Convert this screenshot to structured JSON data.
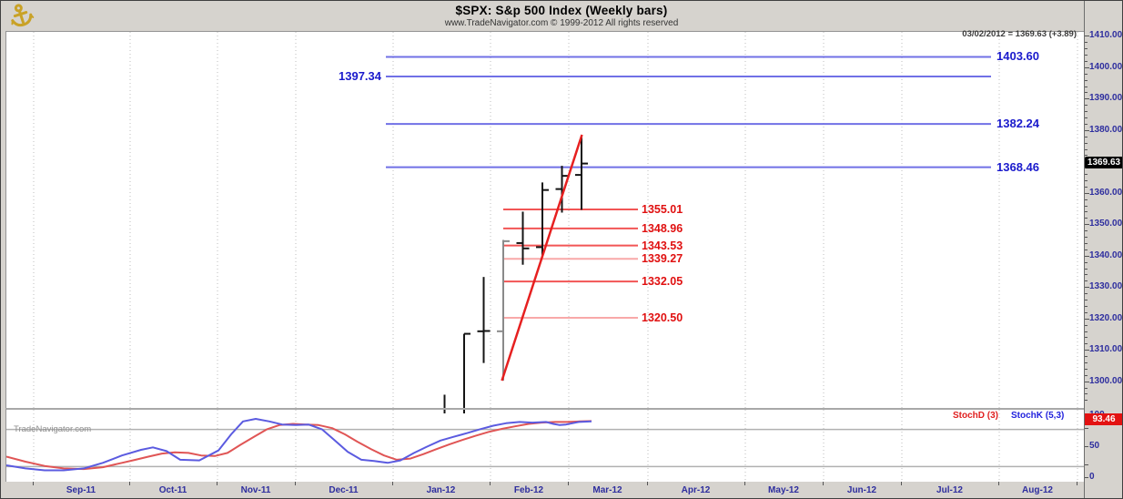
{
  "window": {
    "title": "$SPX:  S&p 500 Index  (Weekly bars)",
    "subtitle": "www.TradeNavigator.com © 1999-2012 All rights reserved",
    "quote_line": "03/02/2012 = 1369.63 (+3.89)",
    "watermark": "TradeNavigator.com",
    "logo": "anchor-icon"
  },
  "colors": {
    "frame_bg": "#d6d3ce",
    "panel_bg": "#ffffff",
    "grid": "#bdbdbd",
    "axis_text": "#2d2d9e",
    "bar": "#141414",
    "bar_gray": "#8a8a8a",
    "blue_line": "#7070e6",
    "blue_label": "#1a1acc",
    "red_line_strong": "#f25555",
    "red_line_light": "#f8a8a8",
    "red_label": "#e01010",
    "trendline": "#e62020",
    "stoch_k": "#5b5be0",
    "stoch_d": "#e05555",
    "last_box_bg": "#000000",
    "stoch_box_bg": "#e31212"
  },
  "chart_data": [
    {
      "type": "ohlc-bar",
      "symbol": "$SPX",
      "period": "Weekly bars",
      "y_axis": {
        "min": 1291.8,
        "max": 1412.0,
        "ticks": [
          1410,
          1400,
          1390,
          1380,
          1370,
          1360,
          1350,
          1340,
          1330,
          1320,
          1310,
          1300
        ],
        "last_price": 1369.63,
        "last_price_label": "1369.63"
      },
      "x_labels": [
        "Sep-11",
        "Oct-11",
        "Nov-11",
        "Dec-11",
        "Jan-12",
        "Feb-12",
        "Mar-12",
        "Apr-12",
        "May-12",
        "Jun-12",
        "Jul-12",
        "Aug-12"
      ],
      "bars": [
        {
          "week": "2012-01-13",
          "o": 1277.5,
          "h": 1296.0,
          "l": 1277.0,
          "c": 1289.1,
          "variant": "normal"
        },
        {
          "week": "2012-01-20",
          "o": 1290.2,
          "h": 1315.4,
          "l": 1290.0,
          "c": 1315.4,
          "variant": "normal"
        },
        {
          "week": "2012-01-27",
          "o": 1316.2,
          "h": 1333.5,
          "l": 1306.1,
          "c": 1316.3,
          "variant": "normal"
        },
        {
          "week": "2012-02-03",
          "o": 1316.2,
          "h": 1345.3,
          "l": 1300.5,
          "c": 1344.9,
          "variant": "gray"
        },
        {
          "week": "2012-02-10",
          "o": 1344.3,
          "h": 1354.3,
          "l": 1337.4,
          "c": 1342.6,
          "variant": "normal"
        },
        {
          "week": "2012-02-17",
          "o": 1343.0,
          "h": 1363.6,
          "l": 1340.1,
          "c": 1361.2,
          "variant": "normal"
        },
        {
          "week": "2012-02-24",
          "o": 1361.5,
          "h": 1368.9,
          "l": 1354.0,
          "c": 1365.7,
          "variant": "normal"
        },
        {
          "week": "2012-03-02",
          "o": 1366.0,
          "h": 1378.0,
          "l": 1354.9,
          "c": 1369.63,
          "variant": "normal"
        }
      ],
      "blue_levels": [
        {
          "price": 1403.6,
          "label": "1403.60",
          "label_side": "right"
        },
        {
          "price": 1397.34,
          "label": "1397.34",
          "label_side": "left"
        },
        {
          "price": 1382.24,
          "label": "1382.24",
          "label_side": "right"
        },
        {
          "price": 1368.46,
          "label": "1368.46",
          "label_side": "right"
        }
      ],
      "red_levels": [
        {
          "price": 1355.01,
          "label": "1355.01",
          "shade": "strong"
        },
        {
          "price": 1348.96,
          "label": "1348.96",
          "shade": "strong"
        },
        {
          "price": 1343.53,
          "label": "1343.53",
          "shade": "strong"
        },
        {
          "price": 1339.27,
          "label": "1339.27",
          "shade": "light"
        },
        {
          "price": 1332.05,
          "label": "1332.05",
          "shade": "strong"
        },
        {
          "price": 1320.5,
          "label": "1320.50",
          "shade": "light"
        }
      ],
      "trendline": {
        "from_price": 1300.5,
        "to_price": 1378.8
      }
    },
    {
      "type": "line",
      "name": "Stochastics",
      "ylim": [
        0,
        100
      ],
      "ticks": [
        100,
        50,
        0
      ],
      "overbought": 80,
      "oversold": 20,
      "last_value": 93.46,
      "last_value_label": "93.46",
      "legend": [
        {
          "label": "StochD (3)",
          "color": "#e02020"
        },
        {
          "label": "StochK (5,3)",
          "color": "#2222dd"
        }
      ],
      "series": [
        {
          "name": "StochK",
          "points": [
            [
              5,
              22
            ],
            [
              26,
              17
            ],
            [
              47,
              14
            ],
            [
              68,
              14
            ],
            [
              90,
              17
            ],
            [
              111,
              26
            ],
            [
              132,
              38
            ],
            [
              153,
              47
            ],
            [
              166,
              51
            ],
            [
              181,
              45
            ],
            [
              196,
              31
            ],
            [
              217,
              30
            ],
            [
              238,
              46
            ],
            [
              252,
              72
            ],
            [
              265,
              93
            ],
            [
              279,
              97
            ],
            [
              294,
              93
            ],
            [
              308,
              88
            ],
            [
              323,
              87
            ],
            [
              337,
              88
            ],
            [
              352,
              80
            ],
            [
              366,
              62
            ],
            [
              380,
              44
            ],
            [
              395,
              31
            ],
            [
              409,
              29
            ],
            [
              424,
              26
            ],
            [
              438,
              30
            ],
            [
              453,
              42
            ],
            [
              467,
              52
            ],
            [
              482,
              62
            ],
            [
              496,
              68
            ],
            [
              511,
              74
            ],
            [
              525,
              80
            ],
            [
              540,
              86
            ],
            [
              554,
              90
            ],
            [
              569,
              92
            ],
            [
              583,
              91
            ],
            [
              598,
              92
            ],
            [
              606,
              89
            ],
            [
              613,
              87
            ],
            [
              620,
              88
            ],
            [
              634,
              92
            ],
            [
              648,
              93
            ]
          ]
        },
        {
          "name": "StochD",
          "points": [
            [
              5,
              36
            ],
            [
              26,
              28
            ],
            [
              47,
              21
            ],
            [
              68,
              17
            ],
            [
              90,
              16
            ],
            [
              111,
              19
            ],
            [
              132,
              26
            ],
            [
              147,
              31
            ],
            [
              161,
              36
            ],
            [
              176,
              41
            ],
            [
              190,
              43
            ],
            [
              205,
              42
            ],
            [
              219,
              38
            ],
            [
              234,
              37
            ],
            [
              248,
              42
            ],
            [
              262,
              55
            ],
            [
              277,
              68
            ],
            [
              291,
              80
            ],
            [
              305,
              87
            ],
            [
              320,
              89
            ],
            [
              334,
              88
            ],
            [
              348,
              87
            ],
            [
              363,
              82
            ],
            [
              377,
              72
            ],
            [
              391,
              60
            ],
            [
              406,
              48
            ],
            [
              420,
              38
            ],
            [
              434,
              31
            ],
            [
              449,
              33
            ],
            [
              463,
              40
            ],
            [
              477,
              48
            ],
            [
              492,
              56
            ],
            [
              506,
              63
            ],
            [
              521,
              70
            ],
            [
              535,
              76
            ],
            [
              550,
              81
            ],
            [
              564,
              85
            ],
            [
              579,
              89
            ],
            [
              593,
              91
            ],
            [
              608,
              92
            ],
            [
              622,
              92
            ],
            [
              635,
              93
            ],
            [
              648,
              93.46
            ]
          ]
        }
      ]
    }
  ]
}
